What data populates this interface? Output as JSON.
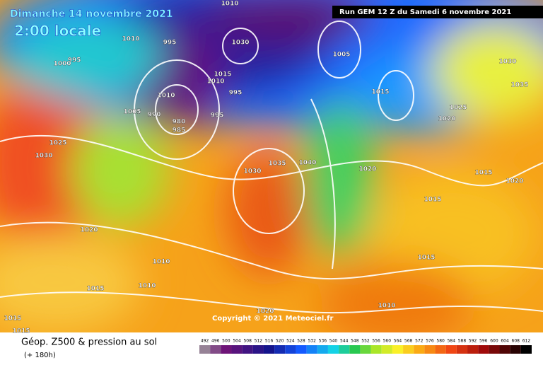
{
  "header": {
    "date": "Dimanche 14 novembre 2021",
    "time": "2:00 locale",
    "run": "Run GEM 12 Z du Samedi 6 novembre 2021"
  },
  "copyright": "Copyright © 2021 Meteociel.fr",
  "footer": {
    "title": "Géop. Z500 & pression au sol",
    "lead": "(+ 180h)"
  },
  "isobar_labels": [
    1010,
    1010,
    995,
    1000,
    995,
    1030,
    1005,
    1015,
    1010,
    1010,
    995,
    1005,
    990,
    980,
    985,
    995,
    1015,
    1030,
    1035,
    1025,
    1020,
    1025,
    1030,
    1030,
    1035,
    1040,
    1020,
    1015,
    1020,
    1015,
    1020,
    1010,
    1015,
    1010,
    1015,
    1020,
    1010,
    1015,
    1015
  ],
  "legend": {
    "values": [
      492,
      496,
      500,
      504,
      508,
      512,
      516,
      520,
      524,
      528,
      532,
      536,
      540,
      544,
      548,
      552,
      556,
      560,
      564,
      568,
      572,
      576,
      580,
      584,
      588,
      592,
      596,
      600,
      604,
      608,
      612
    ]
  }
}
